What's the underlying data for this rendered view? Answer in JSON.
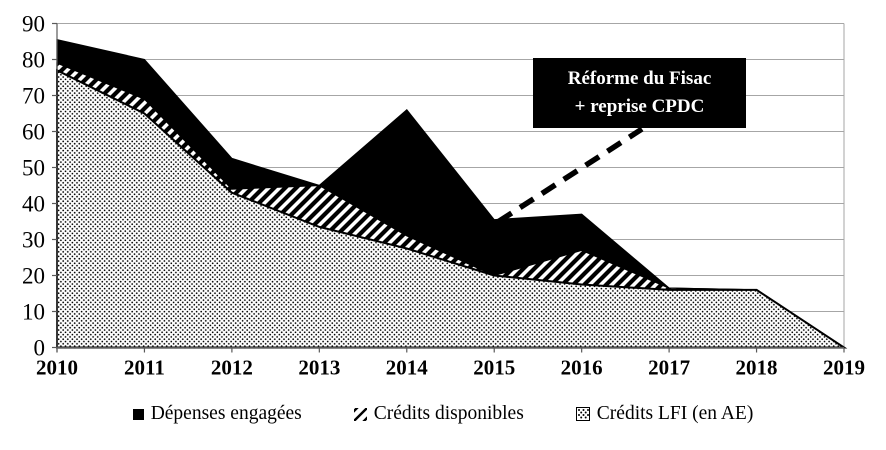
{
  "chart_data": {
    "type": "area",
    "title": "",
    "x": [
      2010,
      2011,
      2012,
      2013,
      2014,
      2015,
      2016,
      2017,
      2018,
      2019
    ],
    "series": [
      {
        "name": "Dépenses engagées",
        "pattern": "solid-black",
        "values": [
          85.5,
          80,
          52.5,
          45,
          66,
          35.5,
          37,
          16.5,
          16,
          0
        ]
      },
      {
        "name": "Crédits disponibles",
        "pattern": "diagonal-hatch",
        "values": [
          79,
          69,
          44,
          45,
          31,
          20,
          27,
          16.5,
          16,
          0
        ]
      },
      {
        "name": "Crédits LFI (en AE)",
        "pattern": "dotted",
        "values": [
          77,
          65,
          43,
          33.5,
          27.5,
          20,
          17.5,
          16,
          16,
          0
        ]
      }
    ],
    "ylim": [
      0,
      90
    ],
    "yticks": [
      0,
      10,
      20,
      30,
      40,
      50,
      60,
      70,
      80,
      90
    ],
    "grid": true,
    "legend_position": "bottom",
    "annotation": {
      "line1": "Réforme du Fisac",
      "line2": "+ reprise CPDC",
      "points_to_year": 2015
    }
  },
  "colors": {
    "series_black": "#000000",
    "gridline": "#a6a6a6",
    "axis": "#595959",
    "annotation_bg": "#000000",
    "annotation_text": "#ffffff",
    "background": "#ffffff"
  }
}
